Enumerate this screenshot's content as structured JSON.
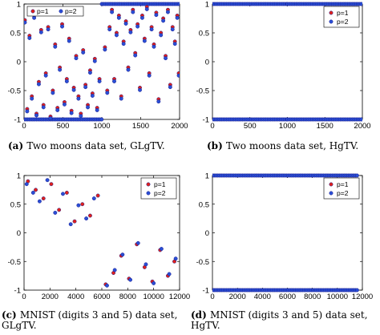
{
  "colors": {
    "p1": "#e0201b",
    "p2": "#2a4fd6",
    "edge": "#1a1a8c"
  },
  "chart_data": [
    {
      "type": "scatter",
      "caption": {
        "label": "(a)",
        "text": "Two moons data set, GLgTV."
      },
      "xlim": [
        0,
        2000
      ],
      "ylim": [
        -1,
        1
      ],
      "xticks": [
        0,
        500,
        1000,
        1500,
        2000
      ],
      "yticks": [
        -1,
        -0.5,
        0,
        0.5,
        1
      ],
      "ytick_labels": [
        "-1",
        "-0.5",
        "0",
        "0.5",
        "1"
      ],
      "legend": {
        "position": "top-left",
        "entries": [
          "p=1",
          "p=2"
        ]
      },
      "series": [
        {
          "name": "p=1",
          "values": [
            [
              10,
              0.72
            ],
            [
              40,
              -0.82
            ],
            [
              70,
              0.45
            ],
            [
              100,
              -0.6
            ],
            [
              130,
              0.8
            ],
            [
              160,
              -0.9
            ],
            [
              190,
              -0.35
            ],
            [
              220,
              0.55
            ],
            [
              250,
              -0.75
            ],
            [
              280,
              -0.2
            ],
            [
              310,
              0.6
            ],
            [
              340,
              -0.95
            ],
            [
              370,
              -0.5
            ],
            [
              400,
              0.3
            ],
            [
              430,
              -0.8
            ],
            [
              460,
              -0.1
            ],
            [
              490,
              0.65
            ],
            [
              520,
              -0.7
            ],
            [
              550,
              -0.3
            ],
            [
              580,
              0.4
            ],
            [
              610,
              -0.85
            ],
            [
              640,
              -0.45
            ],
            [
              670,
              0.1
            ],
            [
              700,
              -0.6
            ],
            [
              730,
              -0.9
            ],
            [
              760,
              0.2
            ],
            [
              790,
              -0.4
            ],
            [
              820,
              -0.75
            ],
            [
              850,
              -0.15
            ],
            [
              880,
              -0.55
            ],
            [
              910,
              0.05
            ],
            [
              940,
              -0.8
            ],
            [
              970,
              -0.3
            ],
            [
              1040,
              0.25
            ],
            [
              1070,
              -0.5
            ],
            [
              1100,
              0.6
            ],
            [
              1130,
              0.9
            ],
            [
              1160,
              -0.3
            ],
            [
              1190,
              0.5
            ],
            [
              1220,
              0.8
            ],
            [
              1250,
              -0.6
            ],
            [
              1280,
              0.35
            ],
            [
              1310,
              0.7
            ],
            [
              1340,
              -0.1
            ],
            [
              1370,
              0.55
            ],
            [
              1400,
              0.9
            ],
            [
              1430,
              0.15
            ],
            [
              1460,
              0.65
            ],
            [
              1490,
              -0.45
            ],
            [
              1520,
              0.8
            ],
            [
              1550,
              0.4
            ],
            [
              1580,
              0.95
            ],
            [
              1610,
              -0.2
            ],
            [
              1640,
              0.6
            ],
            [
              1670,
              0.3
            ],
            [
              1700,
              0.85
            ],
            [
              1730,
              -0.65
            ],
            [
              1760,
              0.5
            ],
            [
              1790,
              0.75
            ],
            [
              1820,
              0.1
            ],
            [
              1850,
              0.9
            ],
            [
              1880,
              -0.4
            ],
            [
              1910,
              0.6
            ],
            [
              1940,
              0.35
            ],
            [
              1970,
              0.8
            ],
            [
              1990,
              -0.2
            ]
          ]
        },
        {
          "name": "p=2",
          "values": [
            [
              10,
              0.68
            ],
            [
              40,
              -0.86
            ],
            [
              70,
              0.41
            ],
            [
              100,
              -0.64
            ],
            [
              130,
              0.76
            ],
            [
              160,
              -0.93
            ],
            [
              190,
              -0.39
            ],
            [
              220,
              0.51
            ],
            [
              250,
              -0.79
            ],
            [
              280,
              -0.24
            ],
            [
              310,
              0.56
            ],
            [
              340,
              -0.98
            ],
            [
              370,
              -0.54
            ],
            [
              400,
              0.26
            ],
            [
              430,
              -0.84
            ],
            [
              460,
              -0.14
            ],
            [
              490,
              0.61
            ],
            [
              520,
              -0.74
            ],
            [
              550,
              -0.34
            ],
            [
              580,
              0.36
            ],
            [
              610,
              -0.89
            ],
            [
              640,
              -0.49
            ],
            [
              670,
              0.06
            ],
            [
              700,
              -0.64
            ],
            [
              730,
              -0.94
            ],
            [
              760,
              0.16
            ],
            [
              790,
              -0.44
            ],
            [
              820,
              -0.79
            ],
            [
              850,
              -0.19
            ],
            [
              880,
              -0.59
            ],
            [
              910,
              0.01
            ],
            [
              940,
              -0.84
            ],
            [
              970,
              -0.34
            ],
            [
              1040,
              0.21
            ],
            [
              1070,
              -0.54
            ],
            [
              1100,
              0.56
            ],
            [
              1130,
              0.86
            ],
            [
              1160,
              -0.34
            ],
            [
              1190,
              0.46
            ],
            [
              1220,
              0.76
            ],
            [
              1250,
              -0.64
            ],
            [
              1280,
              0.31
            ],
            [
              1310,
              0.66
            ],
            [
              1340,
              -0.14
            ],
            [
              1370,
              0.51
            ],
            [
              1400,
              0.86
            ],
            [
              1430,
              0.11
            ],
            [
              1460,
              0.61
            ],
            [
              1490,
              -0.49
            ],
            [
              1520,
              0.76
            ],
            [
              1550,
              0.36
            ],
            [
              1580,
              0.91
            ],
            [
              1610,
              -0.24
            ],
            [
              1640,
              0.56
            ],
            [
              1670,
              0.26
            ],
            [
              1700,
              0.81
            ],
            [
              1730,
              -0.69
            ],
            [
              1760,
              0.46
            ],
            [
              1790,
              0.71
            ],
            [
              1820,
              0.06
            ],
            [
              1850,
              0.86
            ],
            [
              1880,
              -0.44
            ],
            [
              1910,
              0.56
            ],
            [
              1940,
              0.31
            ],
            [
              1970,
              0.76
            ],
            [
              1990,
              -0.24
            ]
          ]
        }
      ],
      "bands": [
        {
          "series": "p=2",
          "y": -1,
          "x_from": 0,
          "x_to": 1000
        },
        {
          "series": "p=2",
          "y": 1,
          "x_from": 1000,
          "x_to": 2000
        }
      ]
    },
    {
      "type": "scatter",
      "caption": {
        "label": "(b)",
        "text": "Two moons data set, HgTV."
      },
      "xlim": [
        0,
        2000
      ],
      "ylim": [
        -1,
        1
      ],
      "xticks": [
        0,
        500,
        1000,
        1500,
        2000
      ],
      "yticks": [
        -1,
        -0.5,
        0,
        0.5,
        1
      ],
      "ytick_labels": [
        "-1",
        "-0.5",
        "0",
        "0.5",
        "1"
      ],
      "legend": {
        "position": "top-right",
        "entries": [
          "p=1",
          "p=2"
        ]
      },
      "series": [
        {
          "name": "p=1",
          "values": []
        },
        {
          "name": "p=2",
          "values": []
        }
      ],
      "bands": [
        {
          "series": "p=2",
          "y": 1,
          "x_from": 0,
          "x_to": 1000
        },
        {
          "series": "p=2",
          "y": -1,
          "x_from": 0,
          "x_to": 1000
        },
        {
          "series": "p=2",
          "y": 1,
          "x_from": 1000,
          "x_to": 2000
        },
        {
          "series": "p=2",
          "y": -1,
          "x_from": 1000,
          "x_to": 2000
        }
      ]
    },
    {
      "type": "scatter",
      "caption": {
        "label": "(c)",
        "text": "MNIST (digits 3 and 5) data set, GLgTV."
      },
      "xlim": [
        0,
        12000
      ],
      "ylim": [
        -1,
        1
      ],
      "xticks": [
        0,
        2000,
        4000,
        6000,
        8000,
        10000,
        12000
      ],
      "yticks": [
        -1,
        -0.5,
        0,
        0.5,
        1
      ],
      "ytick_labels": [
        "-1",
        "-0.5",
        "0",
        "0.5",
        "1"
      ],
      "legend": {
        "position": "top-right",
        "entries": [
          "p=1",
          "p=2"
        ]
      },
      "series": [
        {
          "name": "p=1",
          "values": [
            [
              300,
              0.9
            ],
            [
              900,
              0.75
            ],
            [
              1500,
              0.6
            ],
            [
              2100,
              0.85
            ],
            [
              2700,
              0.4
            ],
            [
              3300,
              0.7
            ],
            [
              3900,
              0.2
            ],
            [
              4500,
              0.5
            ],
            [
              5100,
              0.3
            ],
            [
              5700,
              0.65
            ],
            [
              6300,
              -0.9
            ],
            [
              6900,
              -0.7
            ],
            [
              7500,
              -0.4
            ],
            [
              8100,
              -0.8
            ],
            [
              8700,
              -0.2
            ],
            [
              9300,
              -0.6
            ],
            [
              9900,
              -0.85
            ],
            [
              10500,
              -0.3
            ],
            [
              11100,
              -0.75
            ],
            [
              11600,
              -0.5
            ]
          ]
        },
        {
          "name": "p=2",
          "values": [
            [
              200,
              0.85
            ],
            [
              700,
              0.7
            ],
            [
              1200,
              0.55
            ],
            [
              1800,
              0.92
            ],
            [
              2400,
              0.35
            ],
            [
              3000,
              0.68
            ],
            [
              3600,
              0.15
            ],
            [
              4200,
              0.48
            ],
            [
              4800,
              0.25
            ],
            [
              5400,
              0.6
            ],
            [
              6400,
              -0.92
            ],
            [
              7000,
              -0.65
            ],
            [
              7600,
              -0.38
            ],
            [
              8200,
              -0.82
            ],
            [
              8800,
              -0.18
            ],
            [
              9400,
              -0.55
            ],
            [
              10000,
              -0.88
            ],
            [
              10600,
              -0.28
            ],
            [
              11200,
              -0.72
            ],
            [
              11700,
              -0.45
            ]
          ]
        }
      ]
    },
    {
      "type": "scatter",
      "caption": {
        "label": "(d)",
        "text": "MNIST (digits 3 and 5) data set, HgTV."
      },
      "xlim": [
        0,
        12000
      ],
      "ylim": [
        -1,
        1
      ],
      "xticks": [
        0,
        2000,
        4000,
        6000,
        8000,
        10000,
        12000
      ],
      "yticks": [
        -1,
        -0.5,
        0,
        0.5,
        1
      ],
      "ytick_labels": [
        "-1",
        "-0.5",
        "0",
        "0.5",
        "1"
      ],
      "legend": {
        "position": "top-right",
        "entries": [
          "p=1",
          "p=2"
        ]
      },
      "series": [
        {
          "name": "p=1",
          "values": []
        },
        {
          "name": "p=2",
          "values": []
        }
      ],
      "bands": [
        {
          "series": "p=2",
          "y": 1,
          "x_from": 0,
          "x_to": 11700
        },
        {
          "series": "p=2",
          "y": -1,
          "x_from": 0,
          "x_to": 11700
        }
      ]
    }
  ]
}
